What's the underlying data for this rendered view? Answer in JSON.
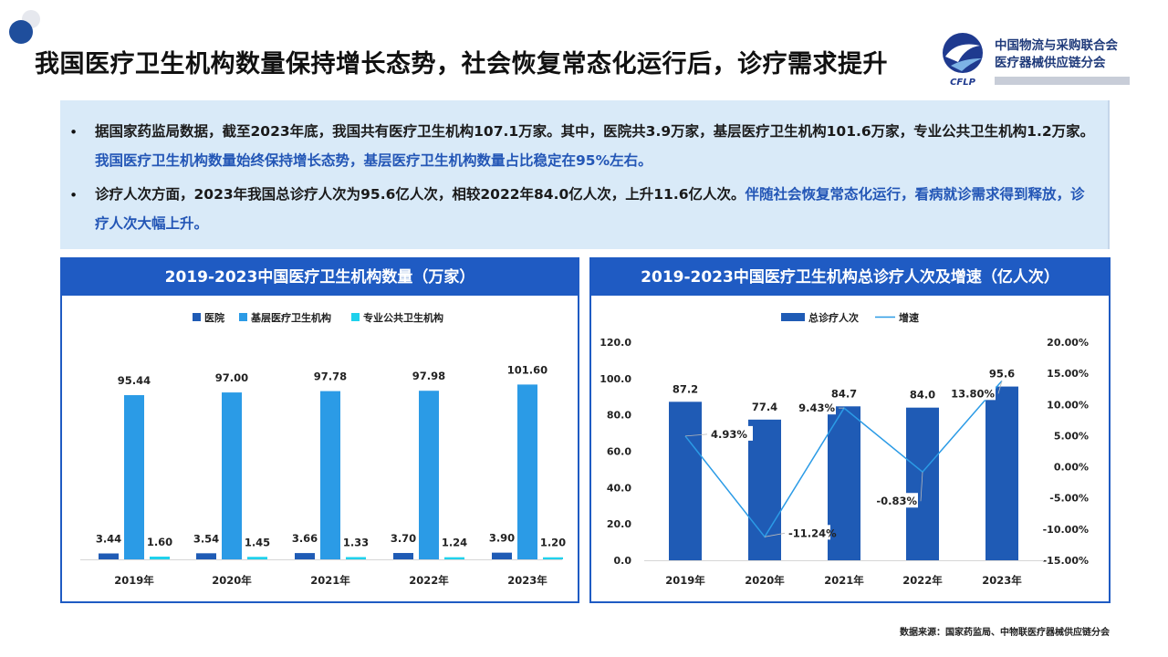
{
  "title": "我国医疗卫生机构数量保持增长态势，社会恢复常态化运行后，诊疗需求提升",
  "org": {
    "line1": "中国物流与采购联合会",
    "line2": "医疗器械供应链分会",
    "logo_text": "CFLP"
  },
  "summary": {
    "b1_plain": "据国家药监局数据，截至2023年底，我国共有医疗卫生机构107.1万家。其中，医院共3.9万家，基层医疗卫生机构101.6万家，专业公共卫生机构1.2万家。",
    "b1_highlight": "我国医疗卫生机构数量始终保持增长态势，基层医疗卫生机构数量占比稳定在95%左右。",
    "b2_plain": "诊疗人次方面，2023年我国总诊疗人次为95.6亿人次，相较2022年84.0亿人次，上升11.6亿人次。",
    "b2_highlight": "伴随社会恢复常态化运行，看病就诊需求得到释放，诊疗人次大幅上升。",
    "bullet": "•"
  },
  "chart_data": [
    {
      "type": "bar",
      "title": "2019-2023中国医疗卫生机构数量（万家）",
      "categories": [
        "2019年",
        "2020年",
        "2021年",
        "2022年",
        "2023年"
      ],
      "series": [
        {
          "name": "医院",
          "values": [
            3.44,
            3.54,
            3.66,
            3.7,
            3.9
          ],
          "labels": [
            "3.44",
            "3.54",
            "3.66",
            "3.70",
            "3.90"
          ],
          "color": "#1f5bb5"
        },
        {
          "name": "基层医疗卫生机构",
          "values": [
            95.44,
            97.0,
            97.78,
            97.98,
            101.6
          ],
          "labels": [
            "95.44",
            "97.00",
            "97.78",
            "97.98",
            "101.60"
          ],
          "color": "#2b9be6"
        },
        {
          "name": "专业公共卫生机构",
          "values": [
            1.6,
            1.45,
            1.33,
            1.24,
            1.2
          ],
          "labels": [
            "1.60",
            "1.45",
            "1.33",
            "1.24",
            "1.20"
          ],
          "color": "#1fd1ec"
        }
      ],
      "ylim": [
        0,
        105
      ],
      "legend": "top"
    },
    {
      "type": "bar",
      "title": "2019-2023中国医疗卫生机构总诊疗人次及增速（亿人次）",
      "categories": [
        "2019年",
        "2020年",
        "2021年",
        "2022年",
        "2023年"
      ],
      "series": [
        {
          "name": "总诊疗人次",
          "values": [
            87.2,
            77.4,
            84.7,
            84.0,
            95.6
          ],
          "labels": [
            "87.2",
            "77.4",
            "84.7",
            "84.0",
            "95.6"
          ],
          "color": "#1f5bb5",
          "axis": "left"
        },
        {
          "name": "增速",
          "type": "line",
          "values": [
            4.93,
            -11.24,
            9.43,
            -0.83,
            13.8
          ],
          "labels": [
            "4.93%",
            "-11.24%",
            "9.43%",
            "-0.83%",
            "13.80%"
          ],
          "color": "#2b9be6",
          "axis": "right"
        }
      ],
      "ylim": [
        0,
        120
      ],
      "y2lim": [
        -15,
        20
      ],
      "y_ticks": [
        "0.0",
        "20.0",
        "40.0",
        "60.0",
        "80.0",
        "100.0",
        "120.0"
      ],
      "y2_ticks": [
        "-15.00%",
        "-10.00%",
        "-5.00%",
        "0.00%",
        "5.00%",
        "10.00%",
        "15.00%",
        "20.00%"
      ],
      "legend": "top"
    }
  ],
  "source": "数据来源：国家药监局、中物联医疗器械供应链分会",
  "colors": {
    "primary": "#1f5bc3",
    "box": "#d9eaf8",
    "highlight": "#2356b6"
  }
}
